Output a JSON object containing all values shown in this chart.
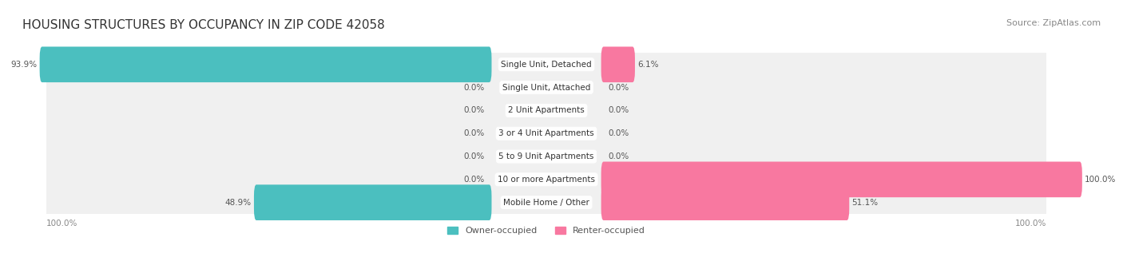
{
  "title": "HOUSING STRUCTURES BY OCCUPANCY IN ZIP CODE 42058",
  "source": "Source: ZipAtlas.com",
  "categories": [
    "Single Unit, Detached",
    "Single Unit, Attached",
    "2 Unit Apartments",
    "3 or 4 Unit Apartments",
    "5 to 9 Unit Apartments",
    "10 or more Apartments",
    "Mobile Home / Other"
  ],
  "owner_pct": [
    93.9,
    0.0,
    0.0,
    0.0,
    0.0,
    0.0,
    48.9
  ],
  "renter_pct": [
    6.1,
    0.0,
    0.0,
    0.0,
    0.0,
    100.0,
    51.1
  ],
  "owner_color": "#4BBFBF",
  "renter_color": "#F878A0",
  "bar_bg_color": "#E8E8E8",
  "row_bg_color": "#F0F0F0",
  "label_color": "#555555",
  "title_color": "#333333",
  "axis_label_color": "#888888",
  "figsize": [
    14.06,
    3.42
  ],
  "dpi": 100
}
